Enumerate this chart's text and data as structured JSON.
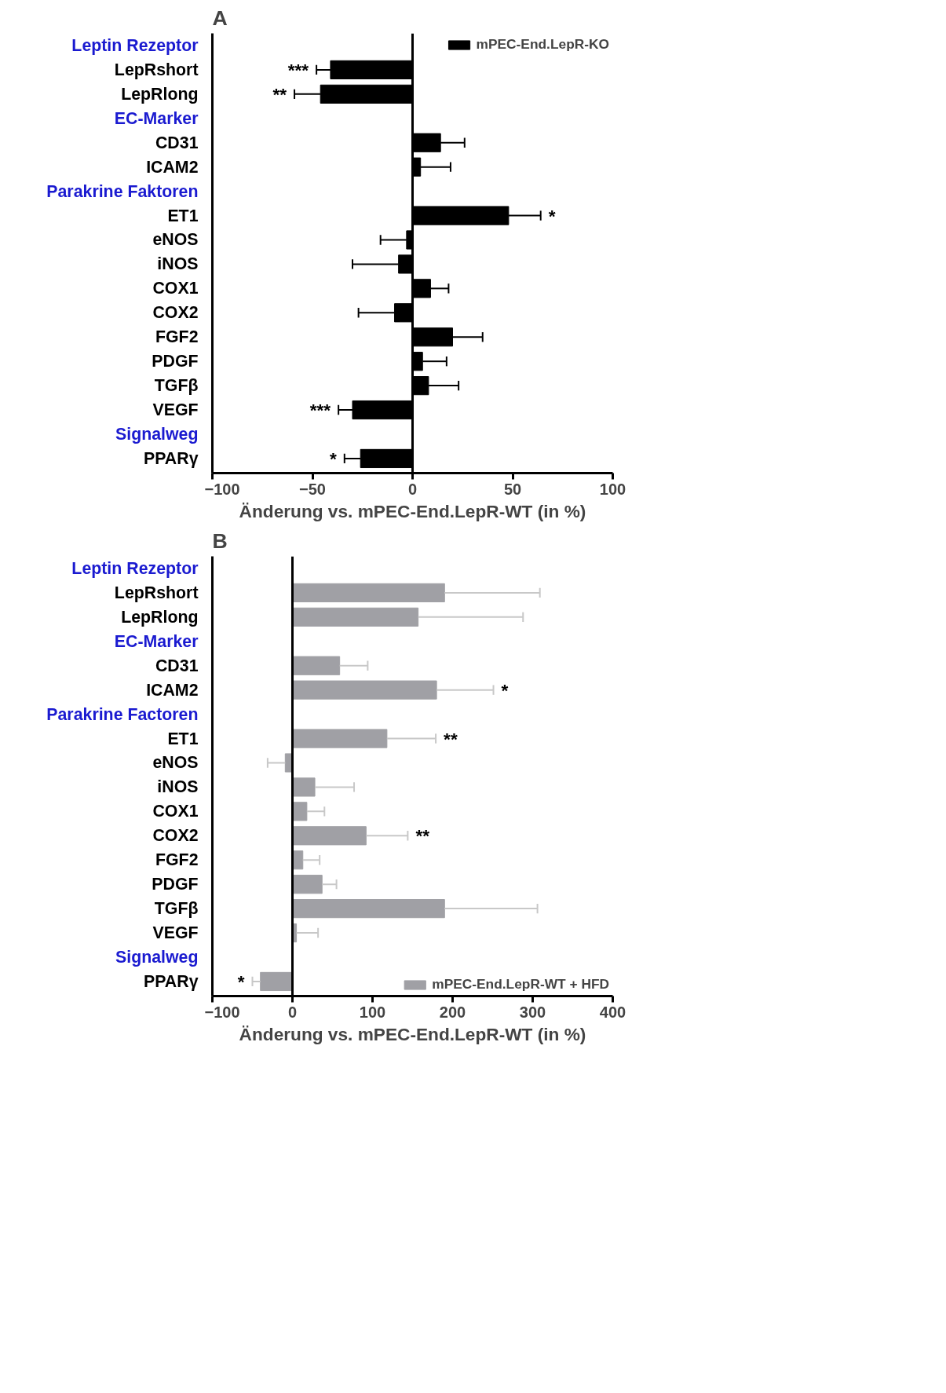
{
  "chart_data": [
    {
      "type": "bar",
      "orientation": "horizontal",
      "title": "A",
      "xlabel": "Änderung vs. mPEC-End.LepR-WT (in %)",
      "categories": [
        "Leptin Rezeptor",
        "LepRshort",
        "LepRlong",
        "EC-Marker",
        "CD31",
        "ICAM2",
        "Parakrine Faktoren",
        "ET1",
        "eNOS",
        "iNOS",
        "COX1",
        "COX2",
        "FGF2",
        "PDGF",
        "TGFβ",
        "VEGF",
        "Signalweg",
        "PPARγ"
      ],
      "series": [
        {
          "name": "mPEC-End.LepR-KO",
          "color": "#000000",
          "values": [
            null,
            -41,
            -46,
            null,
            14,
            4,
            null,
            48,
            -3,
            -7,
            9,
            -9,
            20,
            5,
            8,
            -30,
            null,
            -26
          ],
          "errors": [
            null,
            [
              -48,
              -41
            ],
            [
              -59,
              -46
            ],
            null,
            [
              14,
              26
            ],
            [
              4,
              19
            ],
            null,
            [
              48,
              64
            ],
            [
              -16,
              -3
            ],
            [
              -30,
              -7
            ],
            [
              9,
              18
            ],
            [
              -27,
              -9
            ],
            [
              20,
              35
            ],
            [
              5,
              17
            ],
            [
              8,
              23
            ],
            [
              -37,
              -30
            ],
            null,
            [
              -34,
              -26
            ]
          ]
        }
      ],
      "xlim": [
        -100,
        100
      ],
      "xticks": [
        -100,
        -50,
        0,
        50,
        100
      ],
      "ref_lines": [
        {
          "axis": "x",
          "value": 0
        }
      ],
      "legend": "top right",
      "annotations": [
        {
          "text": "***",
          "x": -48,
          "y": "LepRshort"
        },
        {
          "text": "**",
          "x": -59,
          "y": "LepRlong"
        },
        {
          "text": "*",
          "x": 64,
          "y": "ET1"
        },
        {
          "text": "***",
          "x": -37,
          "y": "VEGF"
        },
        {
          "text": "*",
          "x": -34,
          "y": "PPARγ"
        }
      ],
      "grid": false
    },
    {
      "type": "bar",
      "orientation": "horizontal",
      "title": "B",
      "xlabel": "Änderung vs. mPEC-End.LepR-WT (in %)",
      "categories": [
        "Leptin Rezeptor",
        "LepRshort",
        "LepRlong",
        "EC-Marker",
        "CD31",
        "ICAM2",
        "Parakrine Factoren",
        "ET1",
        "eNOS",
        "iNOS",
        "COX1",
        "COX2",
        "FGF2",
        "PDGF",
        "TGFβ",
        "VEGF",
        "Signalweg",
        "PPARγ"
      ],
      "series": [
        {
          "name": "mPEC-End.LepR-WT + HFD",
          "color": "#a0a0a5",
          "values": [
            null,
            190,
            157,
            null,
            59,
            180,
            null,
            118,
            -9,
            28,
            18,
            92,
            13,
            37,
            190,
            5,
            null,
            -40
          ],
          "errors": [
            null,
            [
              190,
              309
            ],
            [
              157,
              288
            ],
            null,
            [
              59,
              94
            ],
            [
              180,
              251
            ],
            null,
            [
              118,
              179
            ],
            [
              -31,
              -9
            ],
            [
              28,
              77
            ],
            [
              18,
              40
            ],
            [
              92,
              144
            ],
            [
              13,
              34
            ],
            [
              37,
              55
            ],
            [
              190,
              306
            ],
            [
              5,
              32
            ],
            null,
            [
              -50,
              -40
            ]
          ]
        }
      ],
      "xlim": [
        -100,
        400
      ],
      "xticks": [
        -100,
        0,
        100,
        200,
        300,
        400
      ],
      "ref_lines": [
        {
          "axis": "x",
          "value": 0
        }
      ],
      "annotations": [
        {
          "text": "*",
          "x": 251,
          "y": "ICAM2"
        },
        {
          "text": "**",
          "x": 179,
          "y": "ET1"
        },
        {
          "text": "**",
          "x": 144,
          "y": "COX2"
        },
        {
          "text": "*",
          "x": -50,
          "y": "PPARγ"
        }
      ],
      "legend": "bottom right",
      "grid": false
    }
  ]
}
